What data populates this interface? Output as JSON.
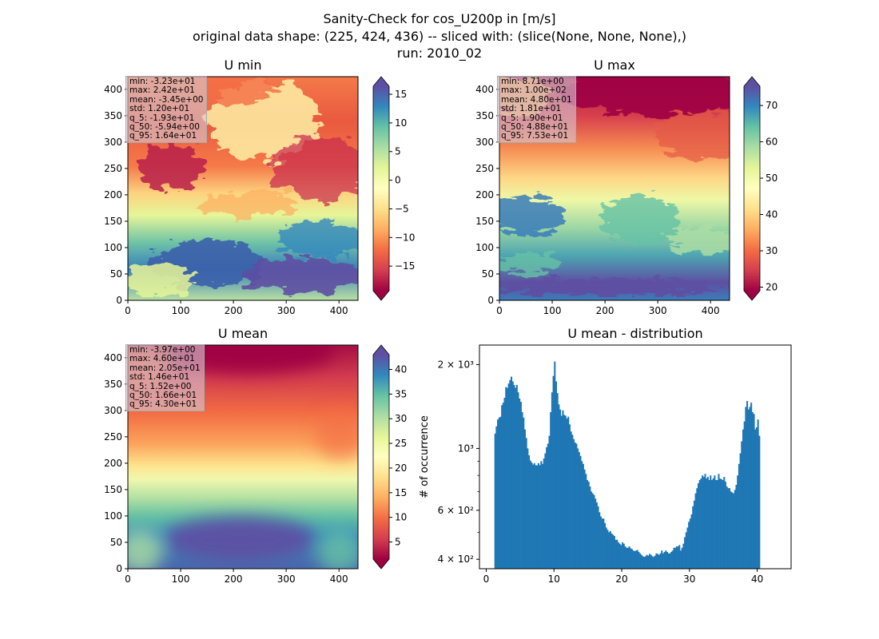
{
  "figure": {
    "title_line1": "Sanity-Check for cos_U200p in [m/s]",
    "title_line2": "original data shape: (225, 424, 436) -- sliced with: (slice(None, None, None),)",
    "title_line3": "run: 2010_02"
  },
  "panels": {
    "umin": {
      "title": "U min",
      "stats": [
        "min: -3.23e+01",
        "max: 2.42e+01",
        "mean: -3.45e+00",
        "std: 1.20e+01",
        "q_5: -1.93e+01",
        "q_50: -5.94e+00",
        "q_95: 1.64e+01"
      ]
    },
    "umax": {
      "title": "U max",
      "stats": [
        "min: 8.71e+00",
        "max: 1.00e+02",
        "mean: 4.80e+01",
        "std: 1.81e+01",
        "q_5: 1.90e+01",
        "q_50: 4.88e+01",
        "q_95: 7.53e+01"
      ]
    },
    "umean": {
      "title": "U mean",
      "stats": [
        "min: -3.97e+00",
        "max: 4.60e+01",
        "mean: 2.05e+01",
        "std: 1.46e+01",
        "q_5: 1.52e+00",
        "q_50: 1.66e+01",
        "q_95: 4.30e+01"
      ]
    },
    "hist": {
      "title": "U mean - distribution",
      "ylabel": "# of occurrence"
    }
  },
  "colors": {
    "histogram": "#1f77b4",
    "colormap": "Spectral"
  },
  "chart_data": [
    {
      "type": "heatmap",
      "title": "U min",
      "x_range": [
        0,
        436
      ],
      "y_range": [
        0,
        424
      ],
      "xticks": [
        0,
        100,
        200,
        300,
        400
      ],
      "yticks": [
        0,
        50,
        100,
        150,
        200,
        250,
        300,
        350,
        400
      ],
      "colorbar": {
        "range": [
          -19.3,
          16.4
        ],
        "ticks": [
          -15,
          -10,
          -5,
          0,
          5,
          10,
          15
        ],
        "extend": "both"
      }
    },
    {
      "type": "heatmap",
      "title": "U max",
      "x_range": [
        0,
        436
      ],
      "y_range": [
        0,
        424
      ],
      "xticks": [
        0,
        100,
        200,
        300,
        400
      ],
      "yticks": [
        0,
        50,
        100,
        150,
        200,
        250,
        300,
        350,
        400
      ],
      "colorbar": {
        "range": [
          19.0,
          75.3
        ],
        "ticks": [
          20,
          30,
          40,
          50,
          60,
          70
        ],
        "extend": "both"
      }
    },
    {
      "type": "heatmap",
      "title": "U mean",
      "x_range": [
        0,
        436
      ],
      "y_range": [
        0,
        424
      ],
      "xticks": [
        0,
        100,
        200,
        300,
        400
      ],
      "yticks": [
        0,
        50,
        100,
        150,
        200,
        250,
        300,
        350,
        400
      ],
      "colorbar": {
        "range": [
          1.52,
          43.0
        ],
        "ticks": [
          5,
          10,
          15,
          20,
          25,
          30,
          35,
          40
        ],
        "extend": "both"
      }
    },
    {
      "type": "bar",
      "title": "U mean - distribution",
      "ylabel": "# of occurrence",
      "yscale": "log",
      "xlim": [
        -1,
        45
      ],
      "ylim": [
        370,
        2350
      ],
      "xticks": [
        0,
        10,
        20,
        30,
        40
      ],
      "yticks": [
        {
          "value": 400,
          "label": "4 × 10²"
        },
        {
          "value": 600,
          "label": "6 × 10²"
        },
        {
          "value": 1000,
          "label": "10³"
        },
        {
          "value": 2000,
          "label": "2 × 10³"
        }
      ],
      "bin_start": 1.2,
      "bin_width": 0.2,
      "values": [
        1130,
        1200,
        1270,
        1290,
        1300,
        1430,
        1460,
        1520,
        1660,
        1650,
        1710,
        1760,
        1810,
        1740,
        1690,
        1650,
        1690,
        1590,
        1510,
        1470,
        1350,
        1290,
        1170,
        1090,
        1000,
        945,
        905,
        890,
        875,
        885,
        870,
        870,
        885,
        870,
        900,
        880,
        920,
        960,
        1010,
        1040,
        1110,
        1350,
        1590,
        1820,
        2050,
        1740,
        1580,
        1440,
        1380,
        1310,
        1370,
        1320,
        1310,
        1280,
        1300,
        1220,
        1150,
        1120,
        1080,
        1050,
        1040,
        1000,
        970,
        940,
        900,
        880,
        840,
        810,
        770,
        760,
        730,
        700,
        690,
        680,
        660,
        640,
        620,
        590,
        570,
        560,
        560,
        540,
        520,
        510,
        500,
        505,
        495,
        490,
        485,
        470,
        470,
        460,
        455,
        450,
        460,
        455,
        445,
        440,
        440,
        445,
        438,
        435,
        430,
        428,
        430,
        432,
        425,
        420,
        415,
        410,
        408,
        410,
        415,
        412,
        418,
        415,
        410,
        408,
        412,
        420,
        418,
        415,
        420,
        430,
        420,
        425,
        430,
        425,
        420,
        420,
        425,
        430,
        440,
        440,
        445,
        445,
        450,
        430,
        440,
        455,
        480,
        500,
        520,
        545,
        560,
        580,
        620,
        650,
        690,
        720,
        750,
        770,
        780,
        800,
        790,
        810,
        780,
        790,
        770,
        800,
        770,
        780,
        800,
        770,
        770,
        810,
        780,
        775,
        770,
        790,
        760,
        730,
        720,
        720,
        700,
        695,
        690,
        710,
        740,
        800,
        880,
        960,
        1060,
        1170,
        1250,
        1410,
        1480,
        1380,
        1410,
        1460,
        1350,
        1330,
        1170,
        1190,
        1270,
        1110
      ]
    }
  ]
}
